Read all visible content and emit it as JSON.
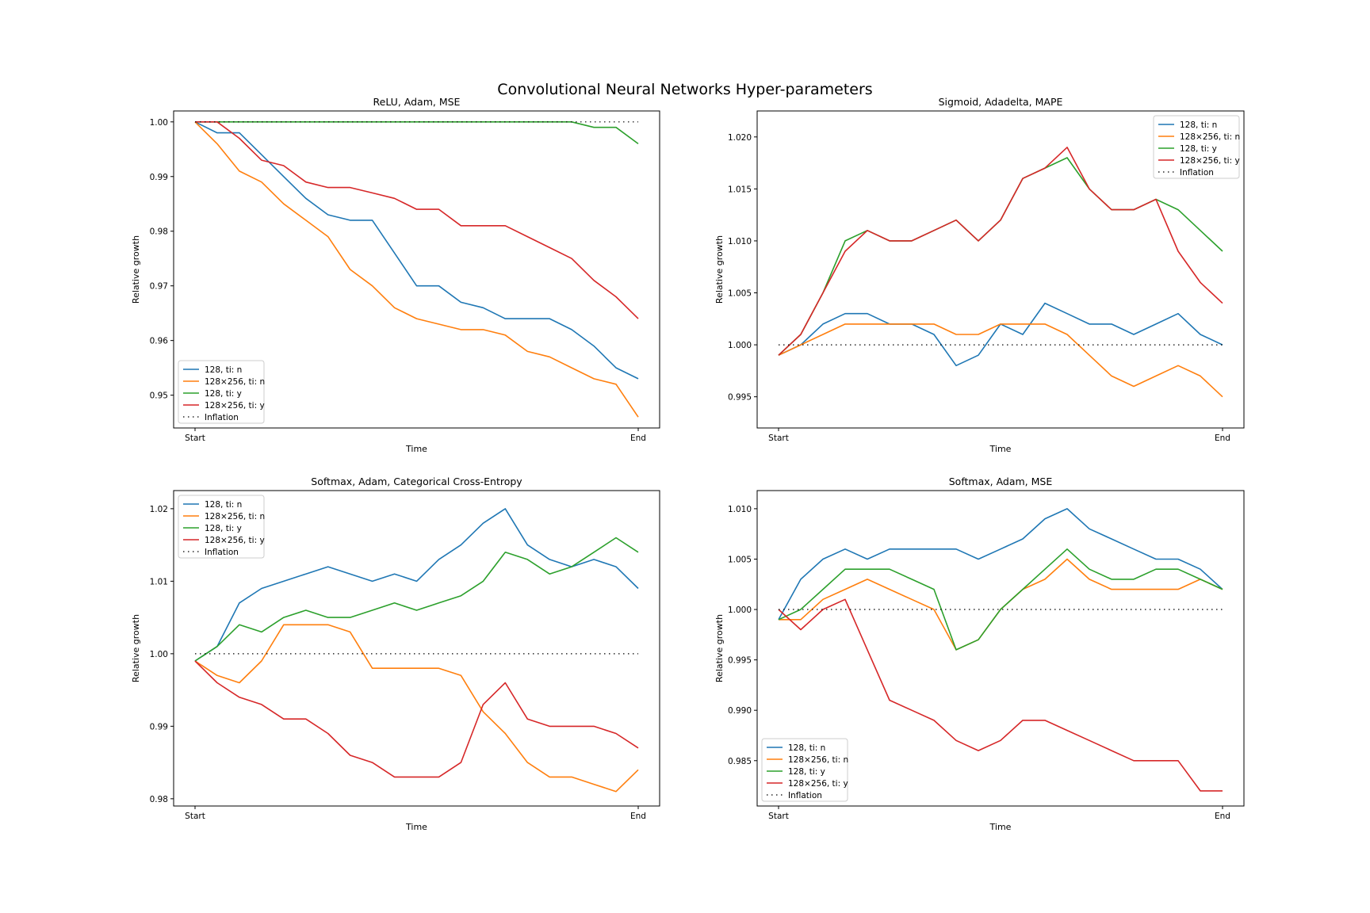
{
  "figure": {
    "title": "Convolutional Neural Networks Hyper-parameters"
  },
  "colors": {
    "s128_tin": "#1f77b4",
    "s128x256_tin": "#ff7f0e",
    "s128_tiy": "#2ca02c",
    "s128x256_tiy": "#d62728",
    "inflation": "#000000"
  },
  "legend_labels": [
    "128, ti: n",
    "128×256, ti: n",
    "128, ti: y",
    "128×256, ti: y",
    "Inflation"
  ],
  "chart_data": [
    {
      "type": "line",
      "title": "ReLU, Adam, MSE",
      "xlabel": "Time",
      "ylabel": "Relative growth",
      "x": [
        0,
        0.05,
        0.1,
        0.15,
        0.2,
        0.25,
        0.3,
        0.35,
        0.4,
        0.45,
        0.5,
        0.55,
        0.6,
        0.65,
        0.7,
        0.75,
        0.8,
        0.85,
        0.9,
        0.95,
        1.0
      ],
      "xticks": [
        "Start",
        "End"
      ],
      "ylim": [
        0.944,
        1.002
      ],
      "yticks": [
        0.95,
        0.96,
        0.97,
        0.98,
        0.99,
        1.0
      ],
      "ytick_labels": [
        "0.95",
        "0.96",
        "0.97",
        "0.98",
        "0.99",
        "1.00"
      ],
      "legend_loc": "lower-left",
      "series": [
        {
          "name": "128, ti: n",
          "color": "#1f77b4",
          "values": [
            1.0,
            0.998,
            0.998,
            0.994,
            0.99,
            0.986,
            0.983,
            0.982,
            0.982,
            0.976,
            0.97,
            0.97,
            0.967,
            0.966,
            0.964,
            0.964,
            0.964,
            0.962,
            0.959,
            0.955,
            0.953
          ]
        },
        {
          "name": "128×256, ti: n",
          "color": "#ff7f0e",
          "values": [
            1.0,
            0.996,
            0.991,
            0.989,
            0.985,
            0.982,
            0.979,
            0.973,
            0.97,
            0.966,
            0.964,
            0.963,
            0.962,
            0.962,
            0.961,
            0.958,
            0.957,
            0.955,
            0.953,
            0.952,
            0.946
          ]
        },
        {
          "name": "128, ti: y",
          "color": "#2ca02c",
          "values": [
            1.0,
            1.0,
            1.0,
            1.0,
            1.0,
            1.0,
            1.0,
            1.0,
            1.0,
            1.0,
            1.0,
            1.0,
            1.0,
            1.0,
            1.0,
            1.0,
            1.0,
            1.0,
            0.999,
            0.999,
            0.996
          ]
        },
        {
          "name": "128×256, ti: y",
          "color": "#d62728",
          "values": [
            1.0,
            1.0,
            0.997,
            0.993,
            0.992,
            0.989,
            0.988,
            0.988,
            0.987,
            0.986,
            0.984,
            0.984,
            0.981,
            0.981,
            0.981,
            0.979,
            0.977,
            0.975,
            0.971,
            0.968,
            0.964
          ]
        },
        {
          "name": "Inflation",
          "color": "#000000",
          "dotted": true,
          "values": [
            1.0,
            1.0,
            1.0,
            1.0,
            1.0,
            1.0,
            1.0,
            1.0,
            1.0,
            1.0,
            1.0,
            1.0,
            1.0,
            1.0,
            1.0,
            1.0,
            1.0,
            1.0,
            1.0,
            1.0,
            1.0
          ]
        }
      ]
    },
    {
      "type": "line",
      "title": "Sigmoid, Adadelta, MAPE",
      "xlabel": "Time",
      "ylabel": "Relative growth",
      "x": [
        0,
        0.05,
        0.1,
        0.15,
        0.2,
        0.25,
        0.3,
        0.35,
        0.4,
        0.45,
        0.5,
        0.55,
        0.6,
        0.65,
        0.7,
        0.75,
        0.8,
        0.85,
        0.9,
        0.95,
        1.0
      ],
      "xticks": [
        "Start",
        "End"
      ],
      "ylim": [
        0.992,
        1.0225
      ],
      "yticks": [
        0.995,
        1.0,
        1.005,
        1.01,
        1.015,
        1.02
      ],
      "ytick_labels": [
        "0.995",
        "1.000",
        "1.005",
        "1.010",
        "1.015",
        "1.020"
      ],
      "legend_loc": "top-right",
      "series": [
        {
          "name": "128, ti: n",
          "color": "#1f77b4",
          "values": [
            0.999,
            1.0,
            1.002,
            1.003,
            1.003,
            1.002,
            1.002,
            1.001,
            0.998,
            0.999,
            1.002,
            1.001,
            1.004,
            1.003,
            1.002,
            1.002,
            1.001,
            1.002,
            1.003,
            1.001,
            1.0
          ]
        },
        {
          "name": "128×256, ti: n",
          "color": "#ff7f0e",
          "values": [
            0.999,
            1.0,
            1.001,
            1.002,
            1.002,
            1.002,
            1.002,
            1.002,
            1.001,
            1.001,
            1.002,
            1.002,
            1.002,
            1.001,
            0.999,
            0.997,
            0.996,
            0.997,
            0.998,
            0.997,
            0.995
          ]
        },
        {
          "name": "128, ti: y",
          "color": "#2ca02c",
          "values": [
            0.999,
            1.001,
            1.005,
            1.01,
            1.011,
            1.01,
            1.01,
            1.011,
            1.012,
            1.01,
            1.012,
            1.016,
            1.017,
            1.018,
            1.015,
            1.013,
            1.013,
            1.014,
            1.013,
            1.011,
            1.009
          ]
        },
        {
          "name": "128×256, ti: y",
          "color": "#d62728",
          "values": [
            0.999,
            1.001,
            1.005,
            1.009,
            1.011,
            1.01,
            1.01,
            1.011,
            1.012,
            1.01,
            1.012,
            1.016,
            1.017,
            1.019,
            1.015,
            1.013,
            1.013,
            1.014,
            1.009,
            1.006,
            1.004
          ]
        },
        {
          "name": "Inflation",
          "color": "#000000",
          "dotted": true,
          "values": [
            1.0,
            1.0,
            1.0,
            1.0,
            1.0,
            1.0,
            1.0,
            1.0,
            1.0,
            1.0,
            1.0,
            1.0,
            1.0,
            1.0,
            1.0,
            1.0,
            1.0,
            1.0,
            1.0,
            1.0,
            1.0
          ]
        }
      ]
    },
    {
      "type": "line",
      "title": "Softmax, Adam, Categorical Cross-Entropy",
      "xlabel": "Time",
      "ylabel": "Relative growth",
      "x": [
        0,
        0.05,
        0.1,
        0.15,
        0.2,
        0.25,
        0.3,
        0.35,
        0.4,
        0.45,
        0.5,
        0.55,
        0.6,
        0.65,
        0.7,
        0.75,
        0.8,
        0.85,
        0.9,
        0.95,
        1.0
      ],
      "xticks": [
        "Start",
        "End"
      ],
      "ylim": [
        0.979,
        1.0225
      ],
      "yticks": [
        0.98,
        0.99,
        1.0,
        1.01,
        1.02
      ],
      "ytick_labels": [
        "0.98",
        "0.99",
        "1.00",
        "1.01",
        "1.02"
      ],
      "legend_loc": "top-left",
      "series": [
        {
          "name": "128, ti: n",
          "color": "#1f77b4",
          "values": [
            0.999,
            1.001,
            1.007,
            1.009,
            1.01,
            1.011,
            1.012,
            1.011,
            1.01,
            1.011,
            1.01,
            1.013,
            1.015,
            1.018,
            1.02,
            1.015,
            1.013,
            1.012,
            1.013,
            1.012,
            1.009
          ]
        },
        {
          "name": "128×256, ti: n",
          "color": "#ff7f0e",
          "values": [
            0.999,
            0.997,
            0.996,
            0.999,
            1.004,
            1.004,
            1.004,
            1.003,
            0.998,
            0.998,
            0.998,
            0.998,
            0.997,
            0.992,
            0.989,
            0.985,
            0.983,
            0.983,
            0.982,
            0.981,
            0.984
          ]
        },
        {
          "name": "128, ti: y",
          "color": "#2ca02c",
          "values": [
            0.999,
            1.001,
            1.004,
            1.003,
            1.005,
            1.006,
            1.005,
            1.005,
            1.006,
            1.007,
            1.006,
            1.007,
            1.008,
            1.01,
            1.014,
            1.013,
            1.011,
            1.012,
            1.014,
            1.016,
            1.014
          ]
        },
        {
          "name": "128×256, ti: y",
          "color": "#d62728",
          "values": [
            0.999,
            0.996,
            0.994,
            0.993,
            0.991,
            0.991,
            0.989,
            0.986,
            0.985,
            0.983,
            0.983,
            0.983,
            0.985,
            0.993,
            0.996,
            0.991,
            0.99,
            0.99,
            0.99,
            0.989,
            0.987
          ]
        },
        {
          "name": "Inflation",
          "color": "#000000",
          "dotted": true,
          "values": [
            1.0,
            1.0,
            1.0,
            1.0,
            1.0,
            1.0,
            1.0,
            1.0,
            1.0,
            1.0,
            1.0,
            1.0,
            1.0,
            1.0,
            1.0,
            1.0,
            1.0,
            1.0,
            1.0,
            1.0,
            1.0
          ]
        }
      ]
    },
    {
      "type": "line",
      "title": "Softmax, Adam, MSE",
      "xlabel": "Time",
      "ylabel": "Relative growth",
      "x": [
        0,
        0.05,
        0.1,
        0.15,
        0.2,
        0.25,
        0.3,
        0.35,
        0.4,
        0.45,
        0.5,
        0.55,
        0.6,
        0.65,
        0.7,
        0.75,
        0.8,
        0.85,
        0.9,
        0.95,
        1.0
      ],
      "xticks": [
        "Start",
        "End"
      ],
      "ylim": [
        0.9805,
        1.0118
      ],
      "yticks": [
        0.985,
        0.99,
        0.995,
        1.0,
        1.005,
        1.01
      ],
      "ytick_labels": [
        "0.985",
        "0.990",
        "0.995",
        "1.000",
        "1.005",
        "1.010"
      ],
      "legend_loc": "lower-left",
      "series": [
        {
          "name": "128, ti: n",
          "color": "#1f77b4",
          "values": [
            0.999,
            1.003,
            1.005,
            1.006,
            1.005,
            1.006,
            1.006,
            1.006,
            1.006,
            1.005,
            1.006,
            1.007,
            1.009,
            1.01,
            1.008,
            1.007,
            1.006,
            1.005,
            1.005,
            1.004,
            1.002
          ]
        },
        {
          "name": "128×256, ti: n",
          "color": "#ff7f0e",
          "values": [
            0.999,
            0.999,
            1.001,
            1.002,
            1.003,
            1.002,
            1.001,
            1.0,
            0.996,
            0.997,
            1.0,
            1.002,
            1.003,
            1.005,
            1.003,
            1.002,
            1.002,
            1.002,
            1.002,
            1.003,
            1.002
          ]
        },
        {
          "name": "128, ti: y",
          "color": "#2ca02c",
          "values": [
            0.999,
            1.0,
            1.002,
            1.004,
            1.004,
            1.004,
            1.003,
            1.002,
            0.996,
            0.997,
            1.0,
            1.002,
            1.004,
            1.006,
            1.004,
            1.003,
            1.003,
            1.004,
            1.004,
            1.003,
            1.002
          ]
        },
        {
          "name": "128×256, ti: y",
          "color": "#d62728",
          "values": [
            1.0,
            0.998,
            1.0,
            1.001,
            0.996,
            0.991,
            0.99,
            0.989,
            0.987,
            0.986,
            0.987,
            0.989,
            0.989,
            0.988,
            0.987,
            0.986,
            0.985,
            0.985,
            0.985,
            0.982,
            0.982
          ]
        },
        {
          "name": "Inflation",
          "color": "#000000",
          "dotted": true,
          "values": [
            1.0,
            1.0,
            1.0,
            1.0,
            1.0,
            1.0,
            1.0,
            1.0,
            1.0,
            1.0,
            1.0,
            1.0,
            1.0,
            1.0,
            1.0,
            1.0,
            1.0,
            1.0,
            1.0,
            1.0,
            1.0
          ]
        }
      ]
    }
  ]
}
